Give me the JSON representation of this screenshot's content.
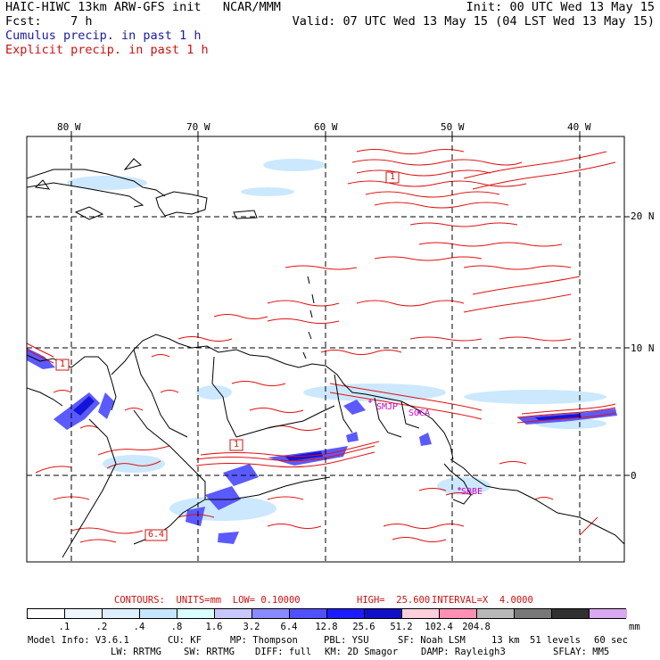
{
  "header": {
    "left_line1": "HAIC-HIWC 13km ARW-GFS init   NCAR/MMM",
    "left_line2": "Fcst:    7 h",
    "init": "Init: 00 UTC Wed 13 May 15",
    "valid": "Valid: 07 UTC Wed 13 May 15 (04 LST Wed 13 May 15)",
    "legend_cumulus": "Cumulus precip. in past 1 h",
    "legend_explicit": "Explicit precip. in past 1 h"
  },
  "map": {
    "lon_labels": [
      "80 W",
      "70 W",
      "60 W",
      "50 W",
      "40 W"
    ],
    "lat_labels": [
      "20 N",
      "10 N",
      "0"
    ],
    "contour_labels": [
      "1",
      "1",
      "1",
      "6.4"
    ],
    "stations": [
      "SMJP",
      "SOCA",
      "SBBE"
    ]
  },
  "contours_line": {
    "prefix": "CONTOURS:  UNITS=mm  LOW= 0.10000",
    "high": "HIGH=  25.600",
    "interval": "INTERVAL=X  4.0000"
  },
  "colorbar": {
    "colors": [
      "#ffffff",
      "#eef6ff",
      "#ddeeff",
      "#c6e6ff",
      "#d9ffff",
      "#c8c8ff",
      "#8a8aff",
      "#5050ff",
      "#1c1cff",
      "#1010c8",
      "#ffd0dc",
      "#ff90b4",
      "#b8b8b8",
      "#787878",
      "#303030",
      "#d8a8f0"
    ],
    "tick_labels": [
      ".1",
      ".2",
      ".4",
      ".8",
      "1.6",
      "3.2",
      "6.4",
      "12.8",
      "25.6",
      "51.2",
      "102.4",
      "204.8"
    ],
    "unit": "mm"
  },
  "model_info": {
    "line1": [
      "Model Info: V3.6.1",
      "CU: KF",
      "MP: Thompson",
      "PBL: YSU",
      "SF: Noah LSM",
      "13 km",
      "51 levels",
      "60 sec"
    ],
    "line2": [
      "LW: RRTMG",
      "SW: RRTMG",
      "DIFF: full",
      "KM: 2D Smagor",
      "DAMP: Rayleigh3",
      "SFLAY: MM5"
    ]
  },
  "colors": {
    "cumulus": "#1a1aa8",
    "explicit": "#d01010",
    "grid": "#000000",
    "station": "#cc00cc"
  }
}
